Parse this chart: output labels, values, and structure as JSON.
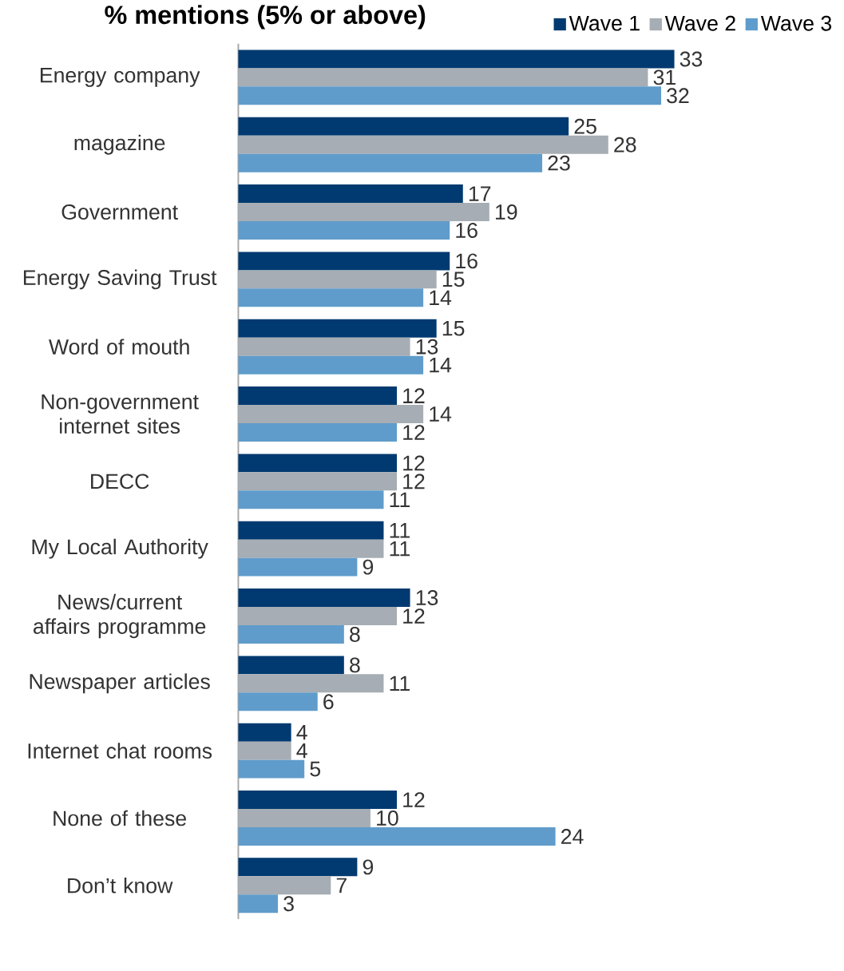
{
  "chart_data": {
    "type": "bar",
    "orientation": "horizontal",
    "title": "% mentions (5% or above)",
    "categories": [
      "Energy company",
      "magazine",
      "Government",
      "Energy Saving Trust",
      "Word of mouth",
      "Non-government internet sites",
      "DECC",
      "My Local Authority",
      "News/current affairs programme",
      "Newspaper articles",
      "Internet chat rooms",
      "None of these",
      "Don’t know"
    ],
    "series": [
      {
        "name": "Wave 1",
        "color": "#003a70",
        "values": [
          33,
          25,
          17,
          16,
          15,
          12,
          12,
          11,
          13,
          8,
          4,
          12,
          9
        ]
      },
      {
        "name": "Wave 2",
        "color": "#a6adb4",
        "values": [
          31,
          28,
          19,
          15,
          13,
          14,
          12,
          11,
          12,
          11,
          4,
          10,
          7
        ]
      },
      {
        "name": "Wave 3",
        "color": "#5f9ccb",
        "values": [
          32,
          23,
          16,
          14,
          14,
          12,
          11,
          9,
          8,
          6,
          5,
          24,
          3
        ]
      }
    ],
    "data_labels": true,
    "legend": "top right"
  }
}
